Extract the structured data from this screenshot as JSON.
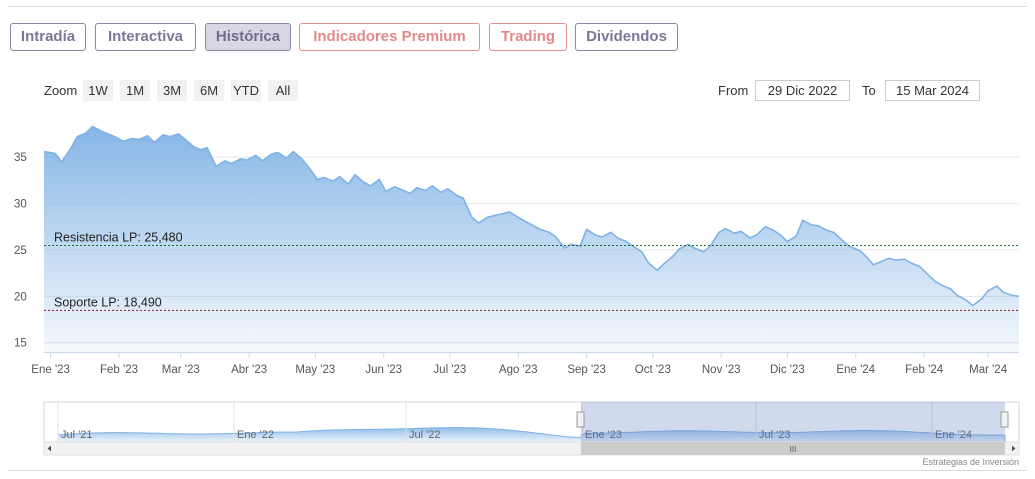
{
  "tabs": [
    {
      "label": "Intradía",
      "style": "normal"
    },
    {
      "label": "Interactiva",
      "style": "normal"
    },
    {
      "label": "Histórica",
      "style": "active"
    },
    {
      "label": "Indicadores Premium",
      "style": "premium"
    },
    {
      "label": "Trading",
      "style": "premium"
    },
    {
      "label": "Dividendos",
      "style": "normal"
    }
  ],
  "zoom": {
    "label": "Zoom",
    "buttons": [
      "1W",
      "1M",
      "3M",
      "6M",
      "YTD",
      "All"
    ]
  },
  "range": {
    "from_label": "From",
    "from_value": "29 Dic 2022",
    "to_label": "To",
    "to_value": "15 Mar 2024"
  },
  "credit": "Estrategias de Inversión",
  "colors": {
    "line": "#7fb2e5",
    "area_top": "#7fb2e5",
    "resistance": "#1e6b2e",
    "support": "#8b1a2b",
    "tab_border": "#8a86a8",
    "premium": "#e28a87"
  },
  "chart_data": {
    "type": "area",
    "title": "",
    "xlabel": "",
    "ylabel": "",
    "ylim": [
      14,
      39
    ],
    "yticks": [
      15,
      20,
      25,
      30,
      35
    ],
    "x_ticks": [
      "Ene '23",
      "Feb '23",
      "Mar '23",
      "Abr '23",
      "May '23",
      "Jun '23",
      "Jul '23",
      "Ago '23",
      "Sep '23",
      "Oct '23",
      "Nov '23",
      "Dic '23",
      "Ene '24",
      "Feb '24",
      "Mar '24"
    ],
    "xrange": [
      "2022-12-29",
      "2024-03-15"
    ],
    "grid": "horizontal",
    "series": [
      {
        "values": [
          [
            "2022-12-29",
            35.6
          ],
          [
            "2023-01-03",
            35.4
          ],
          [
            "2023-01-06",
            34.5
          ],
          [
            "2023-01-10",
            35.9
          ],
          [
            "2023-01-13",
            37.2
          ],
          [
            "2023-01-17",
            37.6
          ],
          [
            "2023-01-20",
            38.3
          ],
          [
            "2023-01-24",
            37.8
          ],
          [
            "2023-01-27",
            37.5
          ],
          [
            "2023-01-31",
            37.1
          ],
          [
            "2023-02-03",
            36.7
          ],
          [
            "2023-02-07",
            37.0
          ],
          [
            "2023-02-10",
            36.9
          ],
          [
            "2023-02-14",
            37.3
          ],
          [
            "2023-02-17",
            36.6
          ],
          [
            "2023-02-21",
            37.4
          ],
          [
            "2023-02-24",
            37.2
          ],
          [
            "2023-02-28",
            37.5
          ],
          [
            "2023-03-03",
            36.9
          ],
          [
            "2023-03-07",
            36.1
          ],
          [
            "2023-03-10",
            35.8
          ],
          [
            "2023-03-13",
            36.0
          ],
          [
            "2023-03-17",
            34.0
          ],
          [
            "2023-03-21",
            34.6
          ],
          [
            "2023-03-24",
            34.3
          ],
          [
            "2023-03-28",
            34.8
          ],
          [
            "2023-03-31",
            34.7
          ],
          [
            "2023-04-04",
            35.2
          ],
          [
            "2023-04-07",
            34.6
          ],
          [
            "2023-04-11",
            35.3
          ],
          [
            "2023-04-14",
            35.5
          ],
          [
            "2023-04-18",
            34.9
          ],
          [
            "2023-04-21",
            35.6
          ],
          [
            "2023-04-25",
            34.8
          ],
          [
            "2023-04-28",
            33.9
          ],
          [
            "2023-05-02",
            32.6
          ],
          [
            "2023-05-05",
            32.8
          ],
          [
            "2023-05-09",
            32.4
          ],
          [
            "2023-05-12",
            32.9
          ],
          [
            "2023-05-16",
            32.1
          ],
          [
            "2023-05-19",
            33.1
          ],
          [
            "2023-05-23",
            32.3
          ],
          [
            "2023-05-26",
            31.9
          ],
          [
            "2023-05-30",
            32.6
          ],
          [
            "2023-06-02",
            31.3
          ],
          [
            "2023-06-06",
            31.8
          ],
          [
            "2023-06-09",
            31.5
          ],
          [
            "2023-06-13",
            31.1
          ],
          [
            "2023-06-16",
            31.7
          ],
          [
            "2023-06-20",
            31.4
          ],
          [
            "2023-06-23",
            31.9
          ],
          [
            "2023-06-27",
            31.2
          ],
          [
            "2023-06-30",
            31.6
          ],
          [
            "2023-07-04",
            30.9
          ],
          [
            "2023-07-07",
            30.6
          ],
          [
            "2023-07-11",
            28.5
          ],
          [
            "2023-07-14",
            27.9
          ],
          [
            "2023-07-18",
            28.5
          ],
          [
            "2023-07-21",
            28.7
          ],
          [
            "2023-07-25",
            28.9
          ],
          [
            "2023-07-28",
            29.1
          ],
          [
            "2023-08-01",
            28.5
          ],
          [
            "2023-08-04",
            28.1
          ],
          [
            "2023-08-08",
            27.6
          ],
          [
            "2023-08-11",
            27.2
          ],
          [
            "2023-08-15",
            26.9
          ],
          [
            "2023-08-18",
            26.4
          ],
          [
            "2023-08-22",
            25.2
          ],
          [
            "2023-08-25",
            25.6
          ],
          [
            "2023-08-29",
            25.4
          ],
          [
            "2023-09-01",
            27.2
          ],
          [
            "2023-09-05",
            26.6
          ],
          [
            "2023-09-08",
            26.4
          ],
          [
            "2023-09-12",
            26.9
          ],
          [
            "2023-09-15",
            26.3
          ],
          [
            "2023-09-19",
            25.9
          ],
          [
            "2023-09-22",
            25.4
          ],
          [
            "2023-09-26",
            24.8
          ],
          [
            "2023-09-29",
            23.6
          ],
          [
            "2023-10-03",
            22.8
          ],
          [
            "2023-10-06",
            23.5
          ],
          [
            "2023-10-10",
            24.3
          ],
          [
            "2023-10-13",
            25.1
          ],
          [
            "2023-10-17",
            25.6
          ],
          [
            "2023-10-20",
            25.2
          ],
          [
            "2023-10-24",
            24.8
          ],
          [
            "2023-10-27",
            25.4
          ],
          [
            "2023-10-31",
            26.9
          ],
          [
            "2023-11-03",
            27.3
          ],
          [
            "2023-11-07",
            26.8
          ],
          [
            "2023-11-10",
            27.0
          ],
          [
            "2023-11-14",
            26.3
          ],
          [
            "2023-11-17",
            26.6
          ],
          [
            "2023-11-21",
            27.5
          ],
          [
            "2023-11-24",
            27.2
          ],
          [
            "2023-11-28",
            26.6
          ],
          [
            "2023-12-01",
            25.9
          ],
          [
            "2023-12-05",
            26.5
          ],
          [
            "2023-12-08",
            28.2
          ],
          [
            "2023-12-12",
            27.7
          ],
          [
            "2023-12-15",
            27.6
          ],
          [
            "2023-12-19",
            27.1
          ],
          [
            "2023-12-22",
            26.9
          ],
          [
            "2023-12-27",
            25.8
          ],
          [
            "2023-12-29",
            25.4
          ],
          [
            "2024-01-03",
            24.9
          ],
          [
            "2024-01-06",
            24.2
          ],
          [
            "2024-01-09",
            23.4
          ],
          [
            "2024-01-12",
            23.7
          ],
          [
            "2024-01-16",
            24.1
          ],
          [
            "2024-01-19",
            23.9
          ],
          [
            "2024-01-23",
            24.0
          ],
          [
            "2024-01-26",
            23.6
          ],
          [
            "2024-01-30",
            23.2
          ],
          [
            "2024-02-02",
            22.5
          ],
          [
            "2024-02-06",
            21.6
          ],
          [
            "2024-02-09",
            21.2
          ],
          [
            "2024-02-13",
            20.8
          ],
          [
            "2024-02-16",
            20.1
          ],
          [
            "2024-02-20",
            19.6
          ],
          [
            "2024-02-23",
            19.0
          ],
          [
            "2024-02-27",
            19.7
          ],
          [
            "2024-03-01",
            20.6
          ],
          [
            "2024-03-05",
            21.1
          ],
          [
            "2024-03-08",
            20.4
          ],
          [
            "2024-03-12",
            20.1
          ],
          [
            "2024-03-15",
            20.0
          ]
        ]
      }
    ],
    "annotations": [
      {
        "label": "Resistencia LP: 25,480",
        "value": 25.48,
        "style": "resistance"
      },
      {
        "label": "Soporte LP: 18,490",
        "value": 18.49,
        "style": "support"
      }
    ]
  },
  "navigator": {
    "x_ticks": [
      "Jul '21",
      "Ene '22",
      "Jul '22",
      "Ene '23",
      "Jul '23",
      "Ene '24"
    ],
    "selected_range": [
      "Ene '23",
      "Mar '24"
    ],
    "scrollbar_handle": "III"
  }
}
